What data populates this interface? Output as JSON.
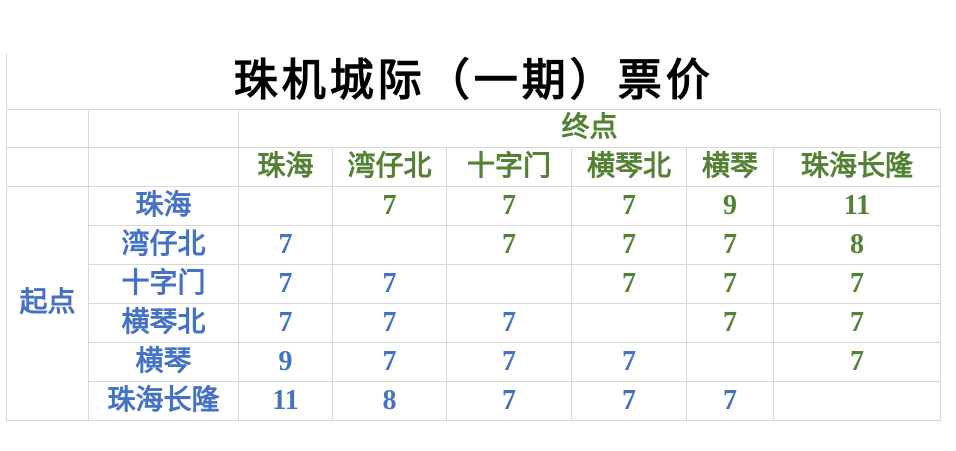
{
  "chart_data": {
    "type": "table",
    "title": "珠机城际（一期）票价",
    "dest_label": "终点",
    "origin_label": "起点",
    "stations": [
      "珠海",
      "湾仔北",
      "十字门",
      "横琴北",
      "横琴",
      "珠海长隆"
    ],
    "fares": [
      [
        null,
        7,
        7,
        7,
        9,
        11
      ],
      [
        7,
        null,
        7,
        7,
        7,
        8
      ],
      [
        7,
        7,
        null,
        7,
        7,
        7
      ],
      [
        7,
        7,
        7,
        null,
        7,
        7
      ],
      [
        9,
        7,
        7,
        7,
        null,
        7
      ],
      [
        11,
        8,
        7,
        7,
        7,
        null
      ]
    ],
    "layout_hints": {
      "upper_triangle_color_role": "destination_green",
      "lower_triangle_color_role": "origin_blue",
      "diagonal": "blank"
    }
  },
  "colors": {
    "title_text": "#000000",
    "destination_green": "#548235",
    "origin_blue": "#4472c4",
    "gridline": "#d8d8d8",
    "background": "#ffffff"
  }
}
